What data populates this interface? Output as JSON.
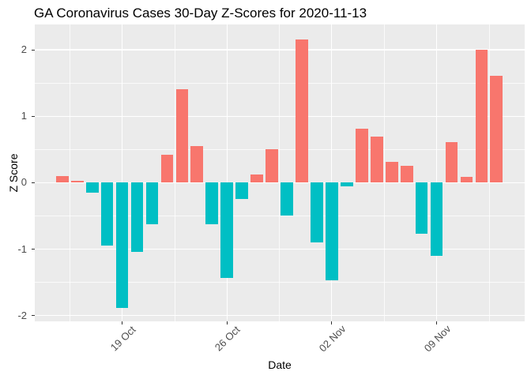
{
  "chart_data": {
    "type": "bar",
    "title": "GA Coronavirus Cases 30-Day Z-Scores for 2020-11-13",
    "xlabel": "Date",
    "ylabel": "Z Score",
    "grid": true,
    "legend": "none",
    "orientation": "vertical",
    "panel_bg": "#EBEBEB",
    "grid_color": "#FFFFFF",
    "positive_color": "#F8766D",
    "negative_color": "#00BFC4",
    "tick_label_color": "#4D4D4D",
    "tick_mark_color": "#333333",
    "title_color": "#000000",
    "ylim": [
      -2.09,
      2.38
    ],
    "y_major_ticks": [
      2,
      1,
      0,
      -1,
      -2
    ],
    "y_minor_ticks": [
      1.5,
      0.5,
      -0.5,
      -1.5
    ],
    "x_tick_labels": [
      "19 Oct",
      "26 Oct",
      "02 Nov",
      "09 Nov"
    ],
    "x_tick_day_indices": [
      4,
      11,
      18,
      25
    ],
    "x": [
      "2020-10-15",
      "2020-10-16",
      "2020-10-17",
      "2020-10-18",
      "2020-10-19",
      "2020-10-20",
      "2020-10-21",
      "2020-10-22",
      "2020-10-23",
      "2020-10-24",
      "2020-10-25",
      "2020-10-26",
      "2020-10-27",
      "2020-10-28",
      "2020-10-29",
      "2020-10-30",
      "2020-10-31",
      "2020-11-01",
      "2020-11-02",
      "2020-11-03",
      "2020-11-04",
      "2020-11-05",
      "2020-11-06",
      "2020-11-07",
      "2020-11-08",
      "2020-11-09",
      "2020-11-10",
      "2020-11-11",
      "2020-11-12",
      "2020-11-13"
    ],
    "values": [
      0.1,
      0.03,
      -0.15,
      -0.94,
      -1.88,
      -1.04,
      -0.62,
      0.42,
      1.41,
      0.55,
      -0.62,
      -1.43,
      -0.24,
      0.12,
      0.5,
      -0.49,
      2.16,
      -0.9,
      -1.47,
      -0.06,
      0.81,
      0.7,
      0.32,
      0.26,
      -0.77,
      -1.1,
      0.61,
      0.09,
      2.0,
      1.61
    ]
  }
}
